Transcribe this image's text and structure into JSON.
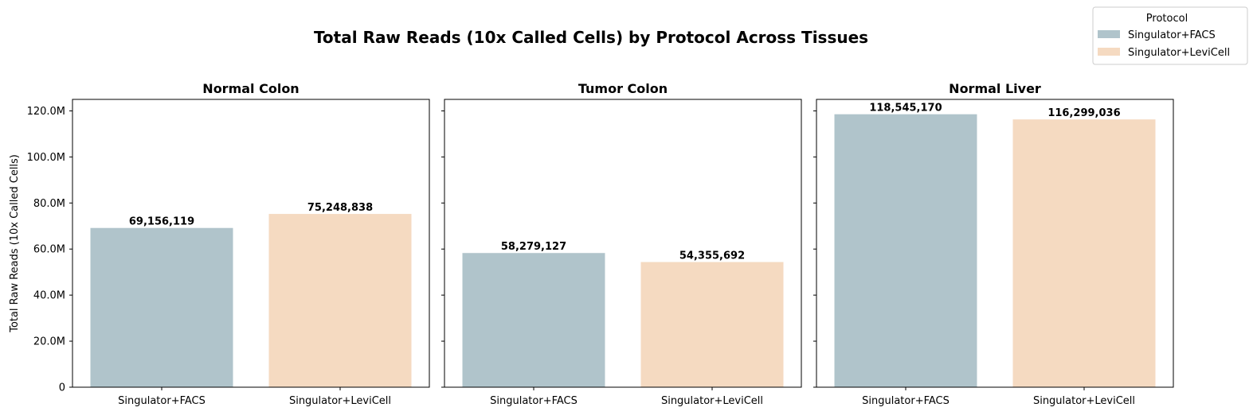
{
  "chart_data": {
    "type": "bar",
    "title": "Total Raw Reads (10x Called Cells) by Protocol Across Tissues",
    "ylabel": "Total Raw Reads (10x Called Cells)",
    "ylim": [
      0,
      125000000
    ],
    "yticks": [
      0,
      20000000,
      40000000,
      60000000,
      80000000,
      100000000,
      120000000
    ],
    "ytick_labels": [
      "0",
      "20.0M",
      "40.0M",
      "60.0M",
      "80.0M",
      "100.0M",
      "120.0M"
    ],
    "categories": [
      "Singulator+FACS",
      "Singulator+LeviCell"
    ],
    "legend": {
      "title": "Protocol",
      "position": "top-right",
      "entries": [
        "Singulator+FACS",
        "Singulator+LeviCell"
      ]
    },
    "colors": {
      "Singulator+FACS": "#b0c4cb",
      "Singulator+LeviCell": "#f5dac1"
    },
    "panels": [
      {
        "title": "Normal Colon",
        "values": [
          69156119,
          75248838
        ],
        "value_labels": [
          "69,156,119",
          "75,248,838"
        ]
      },
      {
        "title": "Tumor Colon",
        "values": [
          58279127,
          54355692
        ],
        "value_labels": [
          "58,279,127",
          "54,355,692"
        ]
      },
      {
        "title": "Normal Liver",
        "values": [
          118545170,
          116299036
        ],
        "value_labels": [
          "118,545,170",
          "116,299,036"
        ]
      }
    ],
    "grid": false
  }
}
